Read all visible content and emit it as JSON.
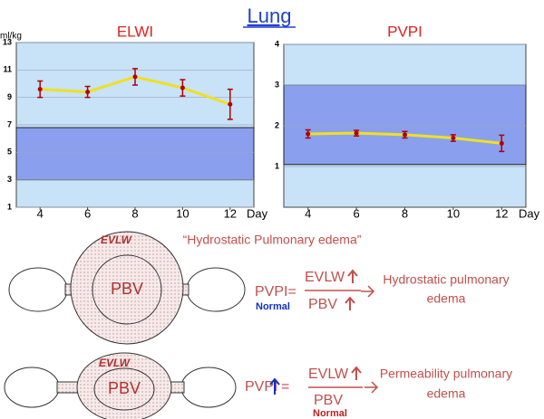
{
  "title": "Lung",
  "chart_data": [
    {
      "type": "line",
      "title": "ELWI",
      "ylabel": "ml/kg",
      "xlabel": "Day",
      "x": [
        4,
        6,
        8,
        10,
        12
      ],
      "values": [
        9.6,
        9.4,
        10.5,
        9.7,
        8.5
      ],
      "errors": [
        0.6,
        0.4,
        0.6,
        0.6,
        1.1
      ],
      "color": "#f0e020",
      "error_color": "#b00000",
      "normal_range": [
        3,
        6.8
      ],
      "band_color": "#8aa0ee",
      "xlim": [
        3,
        13
      ],
      "xticks": [
        4,
        6,
        8,
        10,
        12
      ],
      "ylim": [
        1,
        13
      ],
      "yticks": [
        1,
        3,
        5,
        7,
        9,
        11,
        13
      ],
      "grid": true
    },
    {
      "type": "line",
      "title": "PVPI",
      "xlabel": "Day",
      "x": [
        4,
        6,
        8,
        10,
        12
      ],
      "values": [
        1.8,
        1.82,
        1.78,
        1.7,
        1.57
      ],
      "errors": [
        0.1,
        0.07,
        0.08,
        0.08,
        0.2
      ],
      "color": "#f0e020",
      "error_color": "#b00000",
      "normal_range": [
        1.05,
        3
      ],
      "band_color": "#8aa0ee",
      "xlim": [
        3,
        13
      ],
      "xticks": [
        4,
        6,
        8,
        10,
        12
      ],
      "ylim": [
        0,
        4
      ],
      "yticks": [
        1,
        2,
        3,
        4
      ],
      "grid": true
    }
  ],
  "diagram": {
    "caption": "“Hydrostatic Pulmonary edema”",
    "rows": [
      {
        "ring": "EVLW",
        "core": "PBV",
        "lhs": "PVPI=",
        "numerator": "EVLW",
        "denominator": "PBV",
        "note": "Normal",
        "result": [
          "Hydrostatic pulmonary",
          "edema"
        ]
      },
      {
        "ring": "EVLW",
        "core": "PBV",
        "lhs": "PVPI",
        "numerator": "EVLW",
        "denominator": "PBV",
        "note": "Normal",
        "result": [
          "Permeability pulmonary",
          "edema"
        ]
      }
    ]
  }
}
